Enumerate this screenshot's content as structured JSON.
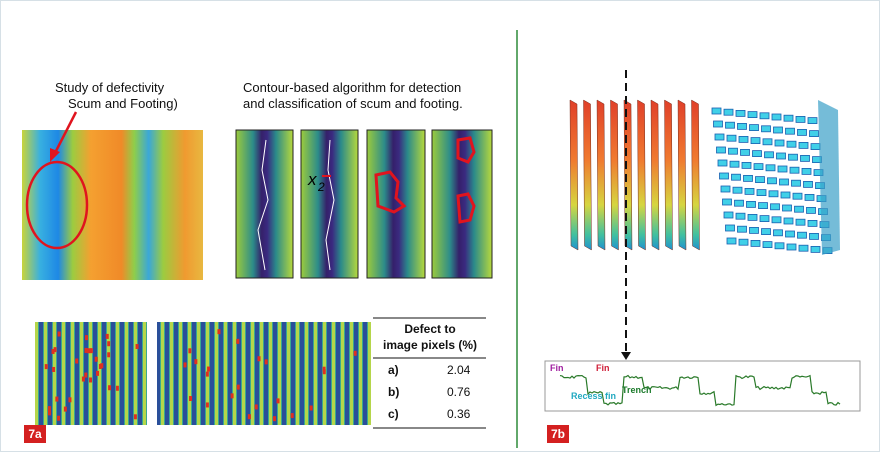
{
  "panel_a": {
    "label": "7a",
    "study_title": [
      "Study of defectivity",
      "Scum and Footing)"
    ],
    "contour_title": [
      "Contour-based algorithm for detection",
      "and classification of scum and footing."
    ],
    "x_label": "x",
    "x_subscript": "2",
    "table": {
      "header": [
        "Defect to",
        "image pixels (%)"
      ],
      "rows": [
        [
          "a)",
          2.04
        ],
        [
          "b)",
          0.76
        ],
        [
          "c)",
          0.36
        ]
      ]
    }
  },
  "panel_b": {
    "label": "7b",
    "profile_labels": {
      "fin_left": "Fin",
      "fin_right": "Fin",
      "trench": "Trench",
      "recess_fin": "Recess fin"
    }
  }
}
